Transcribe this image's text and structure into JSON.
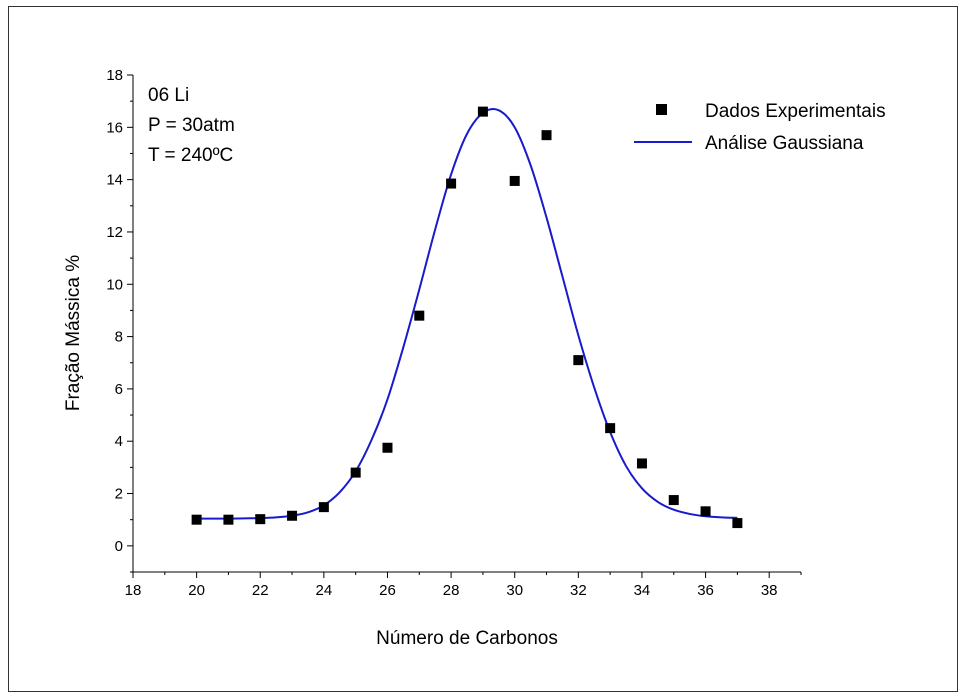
{
  "chart_data": {
    "type": "scatter",
    "title": "",
    "xlabel": "Número de Carbonos",
    "ylabel": "Fração Mássica %",
    "xlim": [
      18,
      39
    ],
    "ylim": [
      -1,
      18
    ],
    "xticks": [
      "18",
      "20",
      "22",
      "24",
      "26",
      "28",
      "30",
      "32",
      "34",
      "36",
      "38"
    ],
    "yticks": [
      "0",
      "2",
      "4",
      "6",
      "8",
      "10",
      "12",
      "14",
      "16",
      "18"
    ],
    "grid": false,
    "legend_position": "top-right",
    "annotations": [
      "06 Li",
      "P = 30atm",
      "T = 240ºC"
    ],
    "series": [
      {
        "name": "Dados Experimentais",
        "kind": "scatter",
        "marker": "square",
        "color": "#000000",
        "x": [
          20,
          21,
          22,
          23,
          24,
          25,
          26,
          27,
          28,
          29,
          30,
          31,
          32,
          33,
          34,
          35,
          36,
          37
        ],
        "y": [
          1.0,
          1.0,
          1.02,
          1.15,
          1.48,
          2.8,
          3.75,
          8.8,
          13.85,
          16.6,
          13.95,
          15.7,
          7.1,
          4.5,
          3.15,
          1.75,
          1.32,
          0.87
        ]
      },
      {
        "name": "Análise Gaussiana",
        "kind": "line",
        "color": "#1a1acc",
        "x": [
          20,
          20.5,
          21,
          21.5,
          22,
          22.5,
          23,
          23.5,
          24,
          24.5,
          25,
          25.5,
          26,
          26.5,
          27,
          27.5,
          28,
          28.5,
          29,
          29.5,
          30,
          30.5,
          31,
          31.5,
          32,
          32.5,
          33,
          33.5,
          34,
          34.5,
          35,
          35.5,
          36,
          36.5,
          37
        ],
        "y": [
          1.04,
          1.04,
          1.04,
          1.05,
          1.06,
          1.09,
          1.15,
          1.28,
          1.55,
          2.05,
          2.85,
          4.05,
          5.6,
          7.6,
          9.8,
          12.1,
          14.2,
          15.75,
          16.55,
          16.65,
          16.0,
          14.55,
          12.55,
          10.3,
          8.05,
          6.05,
          4.35,
          3.05,
          2.2,
          1.68,
          1.38,
          1.22,
          1.13,
          1.09,
          1.07
        ]
      }
    ]
  }
}
